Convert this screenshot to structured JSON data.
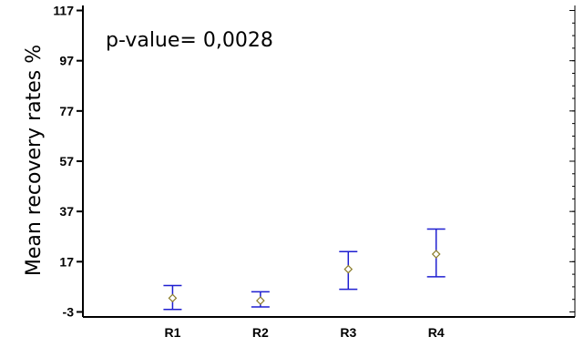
{
  "chart_data": {
    "type": "scatter",
    "title": "",
    "xlabel": "",
    "ylabel": "Mean recovery rates %",
    "categories": [
      "R1",
      "R2",
      "R3",
      "R4"
    ],
    "ylim": [
      -5,
      119
    ],
    "yticks": [
      -3,
      17,
      37,
      57,
      77,
      97,
      117
    ],
    "annotation": "p-value= 0,0028",
    "grid": false,
    "series": [
      {
        "means": [
          2.5,
          1.5,
          14.0,
          20.0
        ],
        "lower": [
          -2.0,
          -1.0,
          6.0,
          11.0
        ],
        "upper": [
          7.5,
          5.0,
          21.0,
          30.0
        ]
      }
    ],
    "colors": {
      "errorbar": "#1f1fd0",
      "marker": "#8b7d2a",
      "axis": "#000000"
    }
  }
}
